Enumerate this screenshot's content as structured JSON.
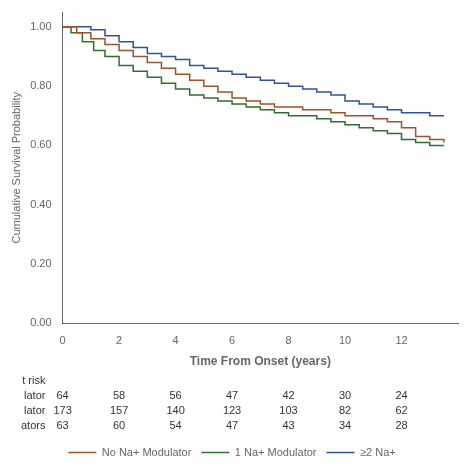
{
  "chart_data": {
    "type": "step",
    "xlabel": "Time From Onset (years)",
    "ylabel": "Cumulative Survival Probability",
    "xlim": [
      0,
      14
    ],
    "ylim": [
      0.0,
      1.05
    ],
    "xticks": [
      0,
      2,
      4,
      6,
      8,
      10,
      12
    ],
    "yticks": [
      {
        "value": 0.0,
        "label": "0.00"
      },
      {
        "value": 0.2,
        "label": "0.20"
      },
      {
        "value": 0.4,
        "label": "0.40"
      },
      {
        "value": 0.6,
        "label": "0.60"
      },
      {
        "value": 0.8,
        "label": "0.80"
      },
      {
        "value": 1.0,
        "label": "1.00"
      }
    ],
    "grid": false,
    "legend": "bottom",
    "series": [
      {
        "name": "No Na+ Modulator",
        "color": "#a0522d",
        "x": [
          0,
          0.5,
          1.0,
          1.5,
          2.0,
          2.5,
          3.0,
          3.5,
          4.0,
          4.5,
          5.0,
          5.5,
          6.0,
          6.5,
          7.0,
          7.5,
          8.0,
          8.5,
          9.0,
          9.5,
          10.0,
          10.5,
          11.0,
          11.5,
          12.0,
          12.5,
          13.0,
          13.5
        ],
        "values": [
          1.0,
          0.98,
          0.96,
          0.94,
          0.92,
          0.9,
          0.88,
          0.86,
          0.84,
          0.82,
          0.8,
          0.78,
          0.76,
          0.75,
          0.74,
          0.73,
          0.73,
          0.72,
          0.72,
          0.71,
          0.7,
          0.7,
          0.69,
          0.68,
          0.66,
          0.63,
          0.62,
          0.61
        ]
      },
      {
        "name": "1 Na+ Modulator",
        "color": "#2e6e2e",
        "x": [
          0,
          0.3,
          0.7,
          1.1,
          1.5,
          2.0,
          2.5,
          3.0,
          3.5,
          4.0,
          4.5,
          5.0,
          5.5,
          6.0,
          6.5,
          7.0,
          7.5,
          8.0,
          8.5,
          9.0,
          9.5,
          10.0,
          10.5,
          11.0,
          11.5,
          12.0,
          12.5,
          13.0,
          13.5
        ],
        "values": [
          1.0,
          0.98,
          0.95,
          0.92,
          0.9,
          0.87,
          0.85,
          0.83,
          0.81,
          0.79,
          0.77,
          0.76,
          0.75,
          0.74,
          0.73,
          0.72,
          0.71,
          0.7,
          0.7,
          0.69,
          0.68,
          0.67,
          0.66,
          0.65,
          0.64,
          0.62,
          0.61,
          0.6,
          0.6
        ]
      },
      {
        "name": "≥2 Na+",
        "color": "#3050a0",
        "x": [
          0,
          0.5,
          1.0,
          1.5,
          2.0,
          2.5,
          3.0,
          3.5,
          4.0,
          4.5,
          5.0,
          5.5,
          6.0,
          6.5,
          7.0,
          7.5,
          8.0,
          8.5,
          9.0,
          9.5,
          10.0,
          10.5,
          11.0,
          11.5,
          12.0,
          12.5,
          13.0,
          13.5
        ],
        "values": [
          1.0,
          1.0,
          0.99,
          0.97,
          0.95,
          0.93,
          0.91,
          0.9,
          0.89,
          0.87,
          0.86,
          0.85,
          0.84,
          0.83,
          0.82,
          0.81,
          0.8,
          0.79,
          0.78,
          0.77,
          0.75,
          0.74,
          0.73,
          0.72,
          0.71,
          0.71,
          0.7,
          0.7
        ]
      }
    ],
    "risk_table": {
      "title": "t risk",
      "x": [
        0,
        2,
        4,
        6,
        8,
        10,
        12
      ],
      "rows": [
        {
          "label": "lator",
          "values": [
            64,
            58,
            56,
            47,
            42,
            30,
            24
          ]
        },
        {
          "label": "lator",
          "values": [
            173,
            157,
            140,
            123,
            103,
            82,
            62
          ]
        },
        {
          "label": "ators",
          "values": [
            63,
            60,
            54,
            47,
            43,
            34,
            28
          ]
        }
      ]
    }
  }
}
